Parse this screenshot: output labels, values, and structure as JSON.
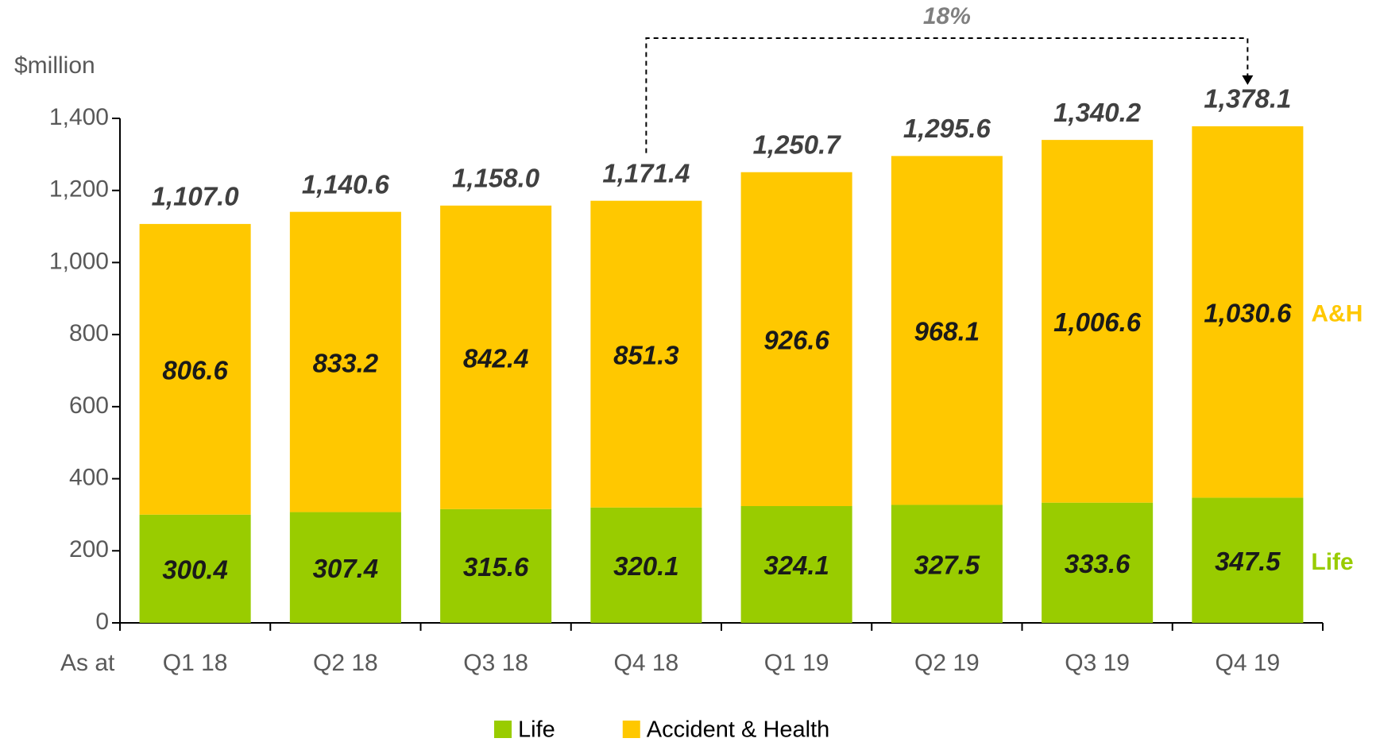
{
  "chart_data": {
    "type": "stacked_bar",
    "y_label": "$million",
    "x_label": "As at",
    "annotation": "18%",
    "categories": [
      "Q1 18",
      "Q2 18",
      "Q3 18",
      "Q4 18",
      "Q1 19",
      "Q2 19",
      "Q3 19",
      "Q4 19"
    ],
    "series": [
      {
        "name": "Life",
        "end_label": "Life",
        "color": "#99cc00",
        "values": [
          300.4,
          307.4,
          315.6,
          320.1,
          324.1,
          327.5,
          333.6,
          347.5
        ]
      },
      {
        "name": "Accident & Health",
        "end_label": "A&H",
        "color": "#ffc800",
        "values": [
          806.6,
          833.2,
          842.4,
          851.3,
          926.6,
          968.1,
          1006.6,
          1030.6
        ],
        "value_labels": [
          "806.6",
          "833.2",
          "842.4",
          "851.3",
          "926.6",
          "968.1",
          "1,006.6",
          "1,030.6"
        ]
      }
    ],
    "totals": [
      1107.0,
      1140.6,
      1158.0,
      1171.4,
      1250.7,
      1295.6,
      1340.2,
      1378.1
    ],
    "total_labels": [
      "1,107.0",
      "1,140.6",
      "1,158.0",
      "1,171.4",
      "1,250.7",
      "1,295.6",
      "1,340.2",
      "1,378.1"
    ],
    "ylim": [
      0,
      1400
    ],
    "yticks": [
      0,
      200,
      400,
      600,
      800,
      {
        "value": 1000,
        "label": "1,000"
      },
      {
        "value": 1200,
        "label": "1,200"
      },
      {
        "value": 1400,
        "label": "1,400"
      }
    ],
    "grid": false,
    "legend": "bottom"
  }
}
